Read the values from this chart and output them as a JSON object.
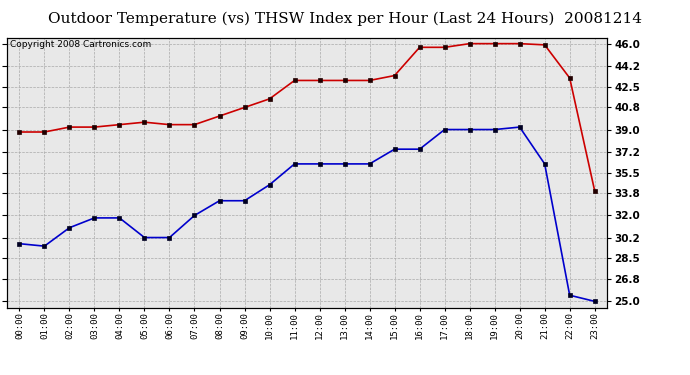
{
  "title": "Outdoor Temperature (vs) THSW Index per Hour (Last 24 Hours)  20081214",
  "copyright": "Copyright 2008 Cartronics.com",
  "hours": [
    "00:00",
    "01:00",
    "02:00",
    "03:00",
    "04:00",
    "05:00",
    "06:00",
    "07:00",
    "08:00",
    "09:00",
    "10:00",
    "11:00",
    "12:00",
    "13:00",
    "14:00",
    "15:00",
    "16:00",
    "17:00",
    "18:00",
    "19:00",
    "20:00",
    "21:00",
    "22:00",
    "23:00"
  ],
  "temp": [
    38.8,
    38.8,
    39.2,
    39.2,
    39.4,
    39.6,
    39.4,
    39.4,
    40.1,
    40.8,
    41.5,
    43.0,
    43.0,
    43.0,
    43.0,
    43.4,
    45.7,
    45.7,
    46.0,
    46.0,
    46.0,
    45.9,
    43.2,
    34.0
  ],
  "thsw": [
    29.7,
    29.5,
    31.0,
    31.8,
    31.8,
    30.2,
    30.2,
    32.0,
    33.2,
    33.2,
    34.5,
    36.2,
    36.2,
    36.2,
    36.2,
    37.4,
    37.4,
    39.0,
    39.0,
    39.0,
    39.2,
    36.2,
    25.5,
    25.0
  ],
  "temp_color": "#cc0000",
  "thsw_color": "#0000cc",
  "ylim": [
    24.5,
    46.5
  ],
  "y_right_ticks": [
    25.0,
    26.8,
    28.5,
    30.2,
    32.0,
    33.8,
    35.5,
    37.2,
    39.0,
    40.8,
    42.5,
    44.2,
    46.0
  ],
  "background_color": "#ffffff",
  "plot_bg_color": "#e8e8e8",
  "grid_color": "#aaaaaa",
  "title_fontsize": 11,
  "copyright_fontsize": 6.5
}
